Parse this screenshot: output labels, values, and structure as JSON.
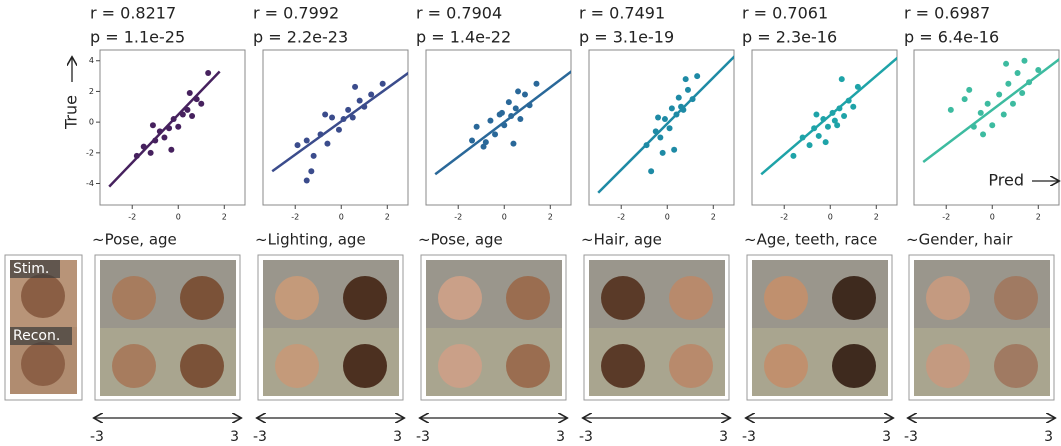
{
  "chart_data": [
    {
      "type": "scatter",
      "title": "r = 0.8217",
      "subtitle": "p = 1.1e-25",
      "color": "#46215e",
      "x": [
        -1.8,
        -1.5,
        -1.2,
        -1.0,
        -0.8,
        -0.6,
        -0.4,
        -0.2,
        0.0,
        0.2,
        0.4,
        0.6,
        0.8,
        1.0,
        1.3,
        -0.3,
        0.5,
        -1.1
      ],
      "y": [
        -2.2,
        -1.6,
        -2.0,
        -1.2,
        -0.6,
        -1.0,
        -0.4,
        0.2,
        -0.3,
        0.5,
        0.8,
        0.4,
        1.5,
        1.2,
        3.2,
        -1.8,
        1.9,
        -0.2
      ],
      "fit": {
        "x": [
          -3,
          1.8
        ],
        "y": [
          -4.2,
          3.3
        ]
      },
      "xlim": [
        -3.4,
        2.9
      ],
      "ylim": [
        -5.4,
        4.7
      ],
      "xticks": [
        -2,
        0,
        2
      ],
      "yticks": [
        -4,
        -2,
        0,
        2,
        4
      ]
    },
    {
      "type": "scatter",
      "title": "r = 0.7992",
      "subtitle": "p = 2.2e-23",
      "color": "#3b4c8c",
      "x": [
        -1.9,
        -1.5,
        -1.5,
        -1.2,
        -0.9,
        -0.6,
        -0.4,
        -0.1,
        0.1,
        0.3,
        0.5,
        0.8,
        1.0,
        1.3,
        1.8,
        -0.7,
        0.6,
        -1.3
      ],
      "y": [
        -1.5,
        -3.8,
        -1.2,
        -2.2,
        -0.8,
        -1.4,
        0.3,
        -0.5,
        0.2,
        0.8,
        0.3,
        1.4,
        1.0,
        1.8,
        2.5,
        0.5,
        2.3,
        -3.2
      ],
      "fit": {
        "x": [
          -3,
          3
        ],
        "y": [
          -3.2,
          3.3
        ]
      },
      "xlim": [
        -3.4,
        2.9
      ],
      "ylim": [
        -5.4,
        4.7
      ],
      "xticks": [
        -2,
        0,
        2
      ]
    },
    {
      "type": "scatter",
      "title": "r = 0.7904",
      "subtitle": "p = 1.4e-22",
      "color": "#2a6899",
      "x": [
        -1.4,
        -1.2,
        -0.9,
        -0.6,
        -0.4,
        -0.2,
        0.0,
        0.2,
        0.3,
        0.5,
        0.7,
        0.9,
        1.1,
        1.4,
        -0.8,
        0.4,
        0.6,
        -0.1
      ],
      "y": [
        -1.2,
        -0.3,
        -1.6,
        0.1,
        -0.8,
        0.5,
        -0.2,
        1.3,
        0.4,
        0.9,
        0.2,
        1.8,
        1.1,
        2.5,
        -1.3,
        -1.4,
        2.0,
        0.6
      ],
      "fit": {
        "x": [
          -3,
          3
        ],
        "y": [
          -3.4,
          3.4
        ]
      },
      "xlim": [
        -3.4,
        2.9
      ],
      "ylim": [
        -5.4,
        4.7
      ],
      "xticks": [
        -2,
        0,
        2
      ]
    },
    {
      "type": "scatter",
      "title": "r = 0.7491",
      "subtitle": "p = 3.1e-19",
      "color": "#1e8aa5",
      "x": [
        -0.9,
        -0.7,
        -0.5,
        -0.3,
        -0.1,
        0.1,
        0.2,
        0.4,
        0.5,
        0.7,
        0.9,
        1.1,
        1.3,
        -0.4,
        0.3,
        0.6,
        -0.2,
        0.8
      ],
      "y": [
        -1.5,
        -3.2,
        -0.6,
        -1.0,
        0.2,
        -0.4,
        0.9,
        0.5,
        1.6,
        0.8,
        2.1,
        1.5,
        3.0,
        0.3,
        -1.8,
        1.0,
        -2.0,
        2.8
      ],
      "fit": {
        "x": [
          -3,
          3
        ],
        "y": [
          -4.6,
          4.4
        ]
      },
      "xlim": [
        -3.4,
        2.9
      ],
      "ylim": [
        -5.4,
        4.7
      ],
      "xticks": [
        -2,
        0,
        2
      ]
    },
    {
      "type": "scatter",
      "title": "r = 0.7061",
      "subtitle": "p = 2.3e-16",
      "color": "#1ea3a8",
      "x": [
        -1.6,
        -1.2,
        -0.9,
        -0.7,
        -0.5,
        -0.3,
        -0.1,
        0.1,
        0.2,
        0.4,
        0.6,
        0.8,
        1.0,
        1.2,
        -0.2,
        0.3,
        -0.6,
        0.5
      ],
      "y": [
        -2.2,
        -1.0,
        -1.5,
        -0.4,
        -0.9,
        0.2,
        -0.3,
        0.6,
        0.1,
        0.9,
        0.4,
        1.4,
        1.0,
        2.3,
        -1.3,
        -0.2,
        0.5,
        2.8
      ],
      "fit": {
        "x": [
          -3,
          3
        ],
        "y": [
          -3.4,
          4.3
        ]
      },
      "xlim": [
        -3.4,
        2.9
      ],
      "ylim": [
        -5.4,
        4.7
      ],
      "xticks": [
        -2,
        0,
        2
      ]
    },
    {
      "type": "scatter",
      "title": "r = 0.6987",
      "subtitle": "p = 6.4e-16",
      "color": "#3dbba0",
      "x": [
        -1.8,
        -1.2,
        -0.8,
        -0.5,
        -0.2,
        0.0,
        0.3,
        0.5,
        0.7,
        0.9,
        1.1,
        1.3,
        1.6,
        2.0,
        -0.4,
        0.6,
        1.4,
        -1.0
      ],
      "y": [
        0.8,
        1.5,
        -0.3,
        0.6,
        1.2,
        -0.2,
        1.8,
        0.5,
        2.5,
        1.2,
        3.2,
        1.9,
        2.6,
        3.4,
        -0.8,
        3.8,
        4.0,
        2.1
      ],
      "fit": {
        "x": [
          -3,
          3
        ],
        "y": [
          -2.6,
          4.2
        ]
      },
      "xlim": [
        -3.4,
        2.9
      ],
      "ylim": [
        -5.4,
        4.7
      ],
      "xticks": [
        -2,
        0,
        2
      ]
    }
  ],
  "y_axis_label": "True",
  "x_axis_label": "Pred",
  "captions": [
    "~Pose, age",
    "~Lighting, age",
    "~Pose, age",
    "~Hair, age",
    "~Age, teeth, race",
    "~Gender, hair"
  ],
  "stim_label": "Stim.",
  "recon_label": "Recon.",
  "scale": [
    -3,
    3
  ]
}
